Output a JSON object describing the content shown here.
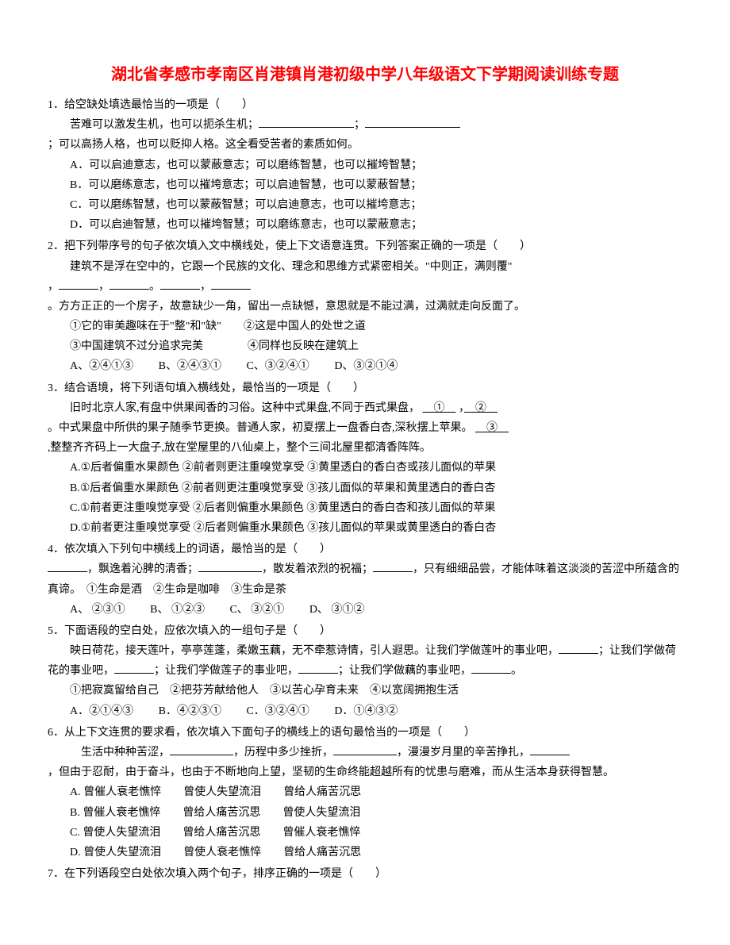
{
  "title": "湖北省孝感市孝南区肖港镇肖港初级中学八年级语文下学期阅读训练专题",
  "q1": {
    "stem": "1．给空缺处填选最恰当的一项是（　　）",
    "line1": "苦难可以激发生机，也可以扼杀生机；",
    "line2": "；可以高扬人格，也可以贬抑人格。这全看受苦者的素质如何。",
    "a": "A．可以启迪意志，也可以蒙蔽意志；可以磨练智慧，也可以摧垮智慧；",
    "b": "B．可以磨练意志，也可以摧垮意志；可以启迪智慧，也可以蒙蔽智慧；",
    "c": "C．可以磨练智慧，也可以蒙蔽智慧；可以启迪意志，也可以摧垮意志；",
    "d": "D．可以启迪智慧，也可以摧垮智慧；可以磨练意志，也可以蒙蔽意志；"
  },
  "q2": {
    "stem": "2．把下列带序号的句子依次填入文中横线处，使上下文语意连贯。下列答案正确的一项是（　　）",
    "line1": "建筑不是浮在空中的，它跟一个民族的文化、理念和思维方式紧密相关。\"中则正，满则覆\"",
    "line2": "，",
    "line3": "。方方正正的一个房子，故意缺少一角，留出一点缺憾，意思就是不能过满，过满就走向反面了。",
    "opt1": "①它的审美趣味在于\"整\"和\"缺\"　　②这是中国人的处世之道",
    "opt2": "③中国建筑不过分追求完美　　　　④同样也反映在建筑上",
    "a": "A、②④①③",
    "b": "B、②④③①",
    "c": "C、③②④①",
    "d": "D、③②①④"
  },
  "q3": {
    "stem": "3．结合语境，将下列语句填入横线处，最恰当的一项是（　　）",
    "line1": "旧时北京人家,有盘中供果闻香的习俗。这种中式果盘,不同于西式果盘，",
    "circ1": "①",
    "sep": " ，",
    "circ2": "②",
    "line2": "。中式果盘中所供的果子随季节更换。普通人家，初夏摆上一盘香白杏,深秋摆上苹果。",
    "circ3": "③",
    "line3": ",整整齐齐码上一大盘子,放在堂屋里的八仙桌上，整个三间北屋里都清香阵阵。",
    "a": "A.①后者偏重水果颜色 ②前者则更注重嗅觉享受 ③黄里透白的香白杏或孩儿面似的苹果",
    "b": "B.①后者偏重水果颜色 ②前者则更注重嗅觉享受 ③孩儿面似的苹果和黄里透白的香白杏",
    "c": "C.①前者更注重嗅觉享受 ②后者则偏重水果颜色 ③黄里透白的香白杏和孩儿面似的苹果",
    "d": "D.①前者更注重嗅觉享受 ②后者则偏重水果颜色 ③孩儿面似的苹果或黄里透白的香白杏"
  },
  "q4": {
    "stem": "4．依次填入下列句中横线上的词语，最恰当的是（　　）",
    "line1": "，飘逸着沁脾的清香；",
    "line2": "，散发着浓烈的祝福；",
    "line3": "，只有细细品尝，才能体味着这淡淡的苦涩中所蕴含的真谛。　①生命是酒　②生命是咖啡　③生命是茶",
    "a": "A、 ②③①",
    "b": "B、 ①②③",
    "c": "C、 ③②①",
    "d": "D、 ③①②"
  },
  "q5": {
    "stem": "5．下面语段的空白处，应依次填入的一组句子是（　　）",
    "line1": "映日荷花，接天莲叶，亭亭莲蓬，柔嫩玉藕，无不牵惹诗情，引人遐思。让我们学做莲叶的事业吧，",
    "line2": "；让我们学做荷花的事业吧，",
    "line3": "；让我们学做莲子的事业吧，",
    "line4": "；让我们学做藕的事业吧，",
    "line5": "。",
    "opts": "①把寂寞留给自己　②把芬芳献给他人　③以苦心孕育未来　④以宽阔拥抱生活",
    "a": "A．②①④③",
    "b": "B．④②③①",
    "c": "C．③②④①",
    "d": "D．①④③②"
  },
  "q6": {
    "stem": "6．从上下文连贯的要求看，依次填入下面句子的横线上的语句最恰当的一项是（　　）",
    "line1": "生活中种种苦涩，",
    "line2": "，历程中多少挫折，",
    "line3": "，漫漫岁月里的辛苦挣扎，",
    "line4": "，但由于忍耐，由于奋斗，也由于不断地向上望，坚韧的生命终能超越所有的忧患与磨难，而从生活本身获得智慧。",
    "a": "A. 曾催人衰老憔悴　　曾使人失望流泪　　曾给人痛苦沉思",
    "b": "B. 曾催人衰老憔悴　　曾给人痛苦沉思　　曾使人失望流泪",
    "c": "C. 曾使人失望流泪　　曾给人痛苦沉思　　曾催人衰老憔悴",
    "d": "D. 曾使人失望流泪　　曾使人衰老憔悴　　曾给人痛苦沉思"
  },
  "q7": {
    "stem": "7．在下列语段空白处依次填入两个句子，排序正确的一项是（　　）"
  }
}
